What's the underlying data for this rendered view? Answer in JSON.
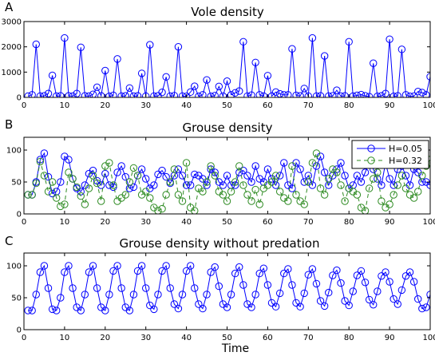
{
  "chart_data": [
    {
      "panel": "A",
      "type": "line",
      "title": "Vole density",
      "xlabel": "",
      "ylabel": "",
      "xlim": [
        0,
        100
      ],
      "ylim": [
        0,
        3000
      ],
      "xticks": [
        0,
        10,
        20,
        30,
        40,
        50,
        60,
        70,
        80,
        90,
        100
      ],
      "yticks": [
        0,
        1000,
        2000,
        3000
      ],
      "grid": false,
      "series": [
        {
          "name": "",
          "color": "#0000ff",
          "marker": "circle",
          "linestyle": "solid",
          "x": [
            1,
            2,
            3,
            4,
            5,
            6,
            7,
            8,
            9,
            10,
            11,
            12,
            13,
            14,
            15,
            16,
            17,
            18,
            19,
            20,
            21,
            22,
            23,
            24,
            25,
            26,
            27,
            28,
            29,
            30,
            31,
            32,
            33,
            34,
            35,
            36,
            37,
            38,
            39,
            40,
            41,
            42,
            43,
            44,
            45,
            46,
            47,
            48,
            49,
            50,
            51,
            52,
            53,
            54,
            55,
            56,
            57,
            58,
            59,
            60,
            61,
            62,
            63,
            64,
            65,
            66,
            67,
            68,
            69,
            70,
            71,
            72,
            73,
            74,
            75,
            76,
            77,
            78,
            79,
            80,
            81,
            82,
            83,
            84,
            85,
            86,
            87,
            88,
            89,
            90,
            91,
            92,
            93,
            94,
            95,
            96,
            97,
            98,
            99,
            100
          ],
          "y": [
            50,
            100,
            2100,
            50,
            60,
            150,
            870,
            50,
            60,
            2350,
            60,
            50,
            150,
            1980,
            60,
            50,
            120,
            400,
            60,
            1060,
            40,
            80,
            1520,
            50,
            60,
            370,
            50,
            60,
            950,
            50,
            2080,
            50,
            60,
            200,
            810,
            50,
            70,
            2000,
            50,
            40,
            210,
            440,
            40,
            100,
            690,
            40,
            70,
            430,
            50,
            640,
            100,
            180,
            250,
            2200,
            50,
            90,
            1380,
            100,
            50,
            860,
            50,
            210,
            140,
            100,
            100,
            1920,
            80,
            60,
            350,
            50,
            2350,
            50,
            60,
            1640,
            50,
            60,
            280,
            50,
            60,
            2200,
            50,
            80,
            110,
            60,
            30,
            1350,
            40,
            60,
            150,
            2300,
            40,
            60,
            1900,
            100,
            40,
            50,
            230,
            190,
            100,
            820
          ]
        }
      ]
    },
    {
      "panel": "B",
      "type": "line",
      "title": "Grouse density",
      "xlabel": "",
      "ylabel": "",
      "xlim": [
        0,
        100
      ],
      "ylim": [
        0,
        120
      ],
      "xticks": [
        0,
        10,
        20,
        30,
        40,
        50,
        60,
        70,
        80,
        90,
        100
      ],
      "yticks": [
        0,
        50,
        100
      ],
      "grid": false,
      "legend_position": "upper-right",
      "series": [
        {
          "name": "H=0.05",
          "color": "#0000ff",
          "marker": "circle",
          "linestyle": "solid",
          "x": [
            1,
            2,
            3,
            4,
            5,
            6,
            7,
            8,
            9,
            10,
            11,
            12,
            13,
            14,
            15,
            16,
            17,
            18,
            19,
            20,
            21,
            22,
            23,
            24,
            25,
            26,
            27,
            28,
            29,
            30,
            31,
            32,
            33,
            34,
            35,
            36,
            37,
            38,
            39,
            40,
            41,
            42,
            43,
            44,
            45,
            46,
            47,
            48,
            49,
            50,
            51,
            52,
            53,
            54,
            55,
            56,
            57,
            58,
            59,
            60,
            61,
            62,
            63,
            64,
            65,
            66,
            67,
            68,
            69,
            70,
            71,
            72,
            73,
            74,
            75,
            76,
            77,
            78,
            79,
            80,
            81,
            82,
            83,
            84,
            85,
            86,
            87,
            88,
            89,
            90,
            91,
            92,
            93,
            94,
            95,
            96,
            97,
            98,
            99,
            100
          ],
          "y": [
            30,
            30,
            50,
            85,
            95,
            58,
            32,
            35,
            50,
            90,
            85,
            55,
            40,
            35,
            45,
            63,
            68,
            52,
            45,
            63,
            45,
            42,
            65,
            75,
            58,
            40,
            42,
            60,
            70,
            55,
            40,
            45,
            62,
            68,
            58,
            48,
            60,
            70,
            60,
            45,
            45,
            62,
            60,
            55,
            45,
            70,
            65,
            50,
            45,
            60,
            45,
            45,
            65,
            68,
            60,
            50,
            75,
            55,
            50,
            70,
            55,
            45,
            60,
            80,
            45,
            40,
            80,
            70,
            50,
            60,
            45,
            75,
            90,
            65,
            45,
            60,
            70,
            80,
            60,
            40,
            45,
            60,
            50,
            65,
            80,
            70,
            55,
            45,
            80,
            55,
            45,
            70,
            75,
            60,
            45,
            70,
            65,
            50,
            50,
            45
          ]
        },
        {
          "name": "H=0.32",
          "color": "#2e8b22",
          "marker": "circle",
          "linestyle": "dashed",
          "x": [
            1,
            2,
            3,
            4,
            5,
            6,
            7,
            8,
            9,
            10,
            11,
            12,
            13,
            14,
            15,
            16,
            17,
            18,
            19,
            20,
            21,
            22,
            23,
            24,
            25,
            26,
            27,
            28,
            29,
            30,
            31,
            32,
            33,
            34,
            35,
            36,
            37,
            38,
            39,
            40,
            41,
            42,
            43,
            44,
            45,
            46,
            47,
            48,
            49,
            50,
            51,
            52,
            53,
            54,
            55,
            56,
            57,
            58,
            59,
            60,
            61,
            62,
            63,
            64,
            65,
            66,
            67,
            68,
            69,
            70,
            71,
            72,
            73,
            74,
            75,
            76,
            77,
            78,
            79,
            80,
            81,
            82,
            83,
            84,
            85,
            86,
            87,
            88,
            89,
            90,
            91,
            92,
            93,
            94,
            95,
            96,
            97,
            98,
            99,
            100
          ],
          "y": [
            30,
            30,
            48,
            82,
            60,
            35,
            50,
            25,
            12,
            15,
            65,
            55,
            42,
            28,
            15,
            40,
            60,
            48,
            20,
            75,
            80,
            45,
            20,
            25,
            30,
            50,
            72,
            60,
            30,
            35,
            25,
            10,
            5,
            8,
            30,
            50,
            70,
            30,
            20,
            80,
            10,
            5,
            40,
            35,
            50,
            75,
            60,
            35,
            30,
            20,
            35,
            50,
            75,
            45,
            30,
            20,
            38,
            15,
            40,
            45,
            50,
            60,
            35,
            25,
            20,
            75,
            30,
            20,
            15,
            50,
            80,
            95,
            40,
            30,
            55,
            70,
            65,
            45,
            20,
            40,
            35,
            30,
            10,
            5,
            40,
            55,
            65,
            20,
            10,
            15,
            30,
            45,
            60,
            40,
            30,
            25,
            35,
            60,
            75,
            85
          ]
        }
      ]
    },
    {
      "panel": "C",
      "type": "line",
      "title": "Grouse density without predation",
      "xlabel": "Time",
      "ylabel": "",
      "xlim": [
        0,
        100
      ],
      "ylim": [
        0,
        120
      ],
      "xticks": [
        0,
        10,
        20,
        30,
        40,
        50,
        60,
        70,
        80,
        90,
        100
      ],
      "yticks": [
        0,
        50,
        100
      ],
      "grid": false,
      "series": [
        {
          "name": "",
          "color": "#0000ff",
          "marker": "circle",
          "linestyle": "solid",
          "x": [
            1,
            2,
            3,
            4,
            5,
            6,
            7,
            8,
            9,
            10,
            11,
            12,
            13,
            14,
            15,
            16,
            17,
            18,
            19,
            20,
            21,
            22,
            23,
            24,
            25,
            26,
            27,
            28,
            29,
            30,
            31,
            32,
            33,
            34,
            35,
            36,
            37,
            38,
            39,
            40,
            41,
            42,
            43,
            44,
            45,
            46,
            47,
            48,
            49,
            50,
            51,
            52,
            53,
            54,
            55,
            56,
            57,
            58,
            59,
            60,
            61,
            62,
            63,
            64,
            65,
            66,
            67,
            68,
            69,
            70,
            71,
            72,
            73,
            74,
            75,
            76,
            77,
            78,
            79,
            80,
            81,
            82,
            83,
            84,
            85,
            86,
            87,
            88,
            89,
            90,
            91,
            92,
            93,
            94,
            95,
            96,
            97,
            98,
            99,
            100
          ],
          "y": [
            30,
            30,
            55,
            90,
            100,
            65,
            32,
            30,
            50,
            90,
            100,
            65,
            35,
            30,
            55,
            90,
            100,
            65,
            35,
            30,
            55,
            92,
            100,
            65,
            35,
            30,
            55,
            92,
            100,
            65,
            38,
            32,
            55,
            92,
            100,
            65,
            40,
            33,
            55,
            92,
            100,
            65,
            40,
            33,
            55,
            90,
            98,
            68,
            40,
            35,
            55,
            88,
            98,
            70,
            40,
            35,
            55,
            88,
            96,
            70,
            42,
            36,
            57,
            88,
            95,
            70,
            42,
            36,
            57,
            86,
            95,
            72,
            45,
            37,
            58,
            85,
            93,
            73,
            45,
            38,
            60,
            85,
            92,
            74,
            47,
            39,
            60,
            84,
            90,
            75,
            48,
            40,
            62,
            84,
            90,
            75,
            48,
            33,
            35,
            55
          ]
        }
      ]
    }
  ]
}
